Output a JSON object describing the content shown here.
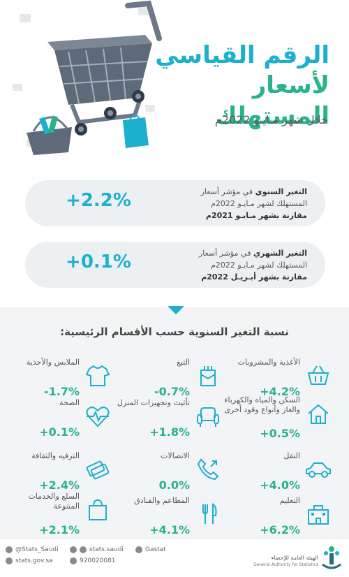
{
  "header": {
    "title_line1": "الرقم القياسي",
    "title_line2": "لأسعار المستهلك",
    "subtitle": "خلال شهر مـايـو 2022م"
  },
  "cards": [
    {
      "value": "+2.2%",
      "label": "التغير السنوي",
      "line1_rest": " في مؤشر أسعار",
      "line2": "المستهلك لشهر مـايـو 2022م",
      "line3": "مقارنة بشهر مـايـو 2021م"
    },
    {
      "value": "+0.1%",
      "label": "التغير الشهري",
      "line1_rest": " في مؤشر أسعار",
      "line2": "المستهلك لشهر مـايـو 2022م",
      "line3": "مقارنة بشهر أبـريـل 2022م"
    }
  ],
  "section_title": "نسبة التغير السنوية حسب الأقسام الرئيسية:",
  "categories": [
    {
      "label": "الأغذية والمشروبات",
      "value": "+4.2%",
      "icon": "basket-icon"
    },
    {
      "label": "التبغ",
      "value": "-0.7%",
      "icon": "cigarette-icon"
    },
    {
      "label": "الملابس والأحذية",
      "value": "-1.7%",
      "icon": "shirt-icon"
    },
    {
      "label": "السكن والمياه والكهرباء والغاز وأنواع وقود أخرى",
      "value": "+0.5%",
      "icon": "house-icon"
    },
    {
      "label": "تأثيث وتجهيزات المنزل",
      "value": "+1.8%",
      "icon": "armchair-icon"
    },
    {
      "label": "الصحة",
      "value": "+0.1%",
      "icon": "heart-pulse-icon"
    },
    {
      "label": "النقل",
      "value": "+4.0%",
      "icon": "car-icon"
    },
    {
      "label": "الاتصالات",
      "value": "0.0%",
      "icon": "phone-icon"
    },
    {
      "label": "الترفيه والثقافة",
      "value": "+2.4%",
      "icon": "tickets-icon"
    },
    {
      "label": "التعليم",
      "value": "+6.2%",
      "icon": "school-icon"
    },
    {
      "label": "المطاعم والفنادق",
      "value": "+4.1%",
      "icon": "cutlery-icon"
    },
    {
      "label": "السلع والخدمات المتنوعة",
      "value": "+2.1%",
      "icon": "shopping-bag-icon"
    }
  ],
  "footer": {
    "twitter": "@Stats_Saudi",
    "instagram": "stats.saudi",
    "linkedin": "Gastat",
    "website": "stats.gov.sa",
    "phone": "920020081",
    "org_ar": "الهيئة العامة للإحصاء",
    "org_en": "General Authority for Statistics"
  },
  "colors": {
    "primary": "#1bb0ce",
    "secondary": "#29b38a",
    "panel": "#f2f4f6"
  }
}
